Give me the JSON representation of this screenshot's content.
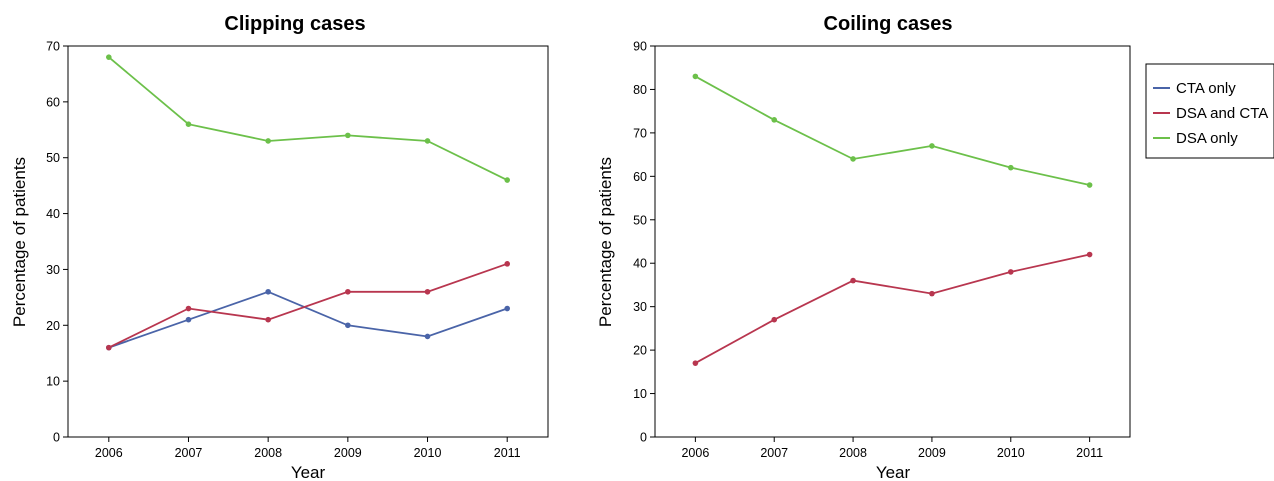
{
  "series_colors": {
    "CTA only": "#4a64a8",
    "DSA and CTA": "#b8364f",
    "DSA only": "#6cc04a"
  },
  "legend": {
    "placement": "right",
    "entries": [
      "CTA only",
      "DSA and CTA",
      "DSA only"
    ]
  },
  "chart_data": [
    {
      "type": "line",
      "title": "Clipping cases",
      "xlabel": "Year",
      "ylabel": "Percentage of patients",
      "x": [
        "2006",
        "2007",
        "2008",
        "2009",
        "2010",
        "2011"
      ],
      "ylim": [
        0,
        70
      ],
      "yticks": [
        0,
        10,
        20,
        30,
        40,
        50,
        60,
        70
      ],
      "grid": false,
      "series": [
        {
          "name": "CTA only",
          "values": [
            16,
            21,
            26,
            20,
            18,
            23
          ]
        },
        {
          "name": "DSA and CTA",
          "values": [
            16,
            23,
            21,
            26,
            26,
            31
          ]
        },
        {
          "name": "DSA only",
          "values": [
            68,
            56,
            53,
            54,
            53,
            46
          ]
        }
      ]
    },
    {
      "type": "line",
      "title": "Coiling cases",
      "xlabel": "Year",
      "ylabel": "Percentage of patients",
      "x": [
        "2006",
        "2007",
        "2008",
        "2009",
        "2010",
        "2011"
      ],
      "ylim": [
        0,
        90
      ],
      "yticks": [
        0,
        10,
        20,
        30,
        40,
        50,
        60,
        70,
        80,
        90
      ],
      "grid": false,
      "series": [
        {
          "name": "DSA and CTA",
          "values": [
            17,
            27,
            36,
            33,
            38,
            42
          ]
        },
        {
          "name": "DSA only",
          "values": [
            83,
            73,
            64,
            67,
            62,
            58
          ]
        }
      ]
    }
  ]
}
